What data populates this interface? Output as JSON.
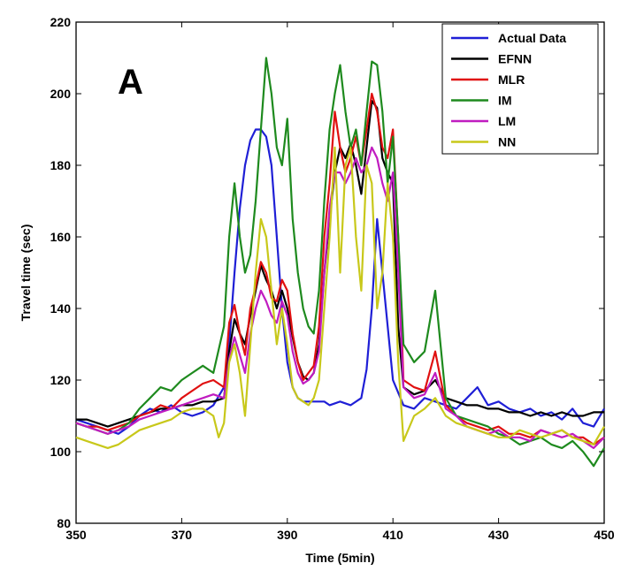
{
  "chart_data": {
    "type": "line",
    "panel_label": "A",
    "title": "",
    "xlabel": "Time (5min)",
    "ylabel": "Travel time (sec)",
    "xlim": [
      350,
      450
    ],
    "ylim": [
      80,
      220
    ],
    "xticks": [
      350,
      370,
      390,
      410,
      430,
      450
    ],
    "yticks": [
      80,
      100,
      120,
      140,
      160,
      180,
      200,
      220
    ],
    "grid": false,
    "legend_position": "top-right",
    "series": [
      {
        "name": "Actual Data",
        "color": "#1f1fd6",
        "x": [
          350,
          352,
          354,
          356,
          358,
          360,
          362,
          364,
          366,
          368,
          370,
          372,
          374,
          376,
          378,
          379,
          380,
          381,
          382,
          383,
          384,
          385,
          386,
          387,
          388,
          389,
          390,
          391,
          392,
          393,
          394,
          395,
          396,
          397,
          398,
          400,
          402,
          404,
          405,
          406,
          407,
          408,
          410,
          412,
          414,
          416,
          418,
          420,
          422,
          424,
          426,
          428,
          430,
          432,
          434,
          436,
          438,
          440,
          442,
          444,
          446,
          448,
          450
        ],
        "y": [
          109,
          108,
          107,
          106,
          105,
          107,
          110,
          112,
          111,
          113,
          111,
          110,
          111,
          113,
          118,
          130,
          150,
          168,
          180,
          187,
          190,
          190,
          188,
          180,
          160,
          140,
          125,
          118,
          115,
          114,
          114,
          114,
          114,
          114,
          113,
          114,
          113,
          115,
          123,
          140,
          165,
          150,
          120,
          113,
          112,
          115,
          114,
          113,
          112,
          115,
          118,
          113,
          114,
          112,
          111,
          112,
          110,
          111,
          109,
          112,
          108,
          107,
          112
        ]
      },
      {
        "name": "EFNN",
        "color": "#000000",
        "x": [
          350,
          352,
          354,
          356,
          358,
          360,
          362,
          364,
          366,
          368,
          370,
          372,
          374,
          376,
          378,
          379,
          380,
          381,
          382,
          383,
          384,
          385,
          386,
          387,
          388,
          389,
          390,
          391,
          392,
          393,
          394,
          395,
          396,
          397,
          398,
          399,
          400,
          401,
          402,
          403,
          404,
          405,
          406,
          407,
          408,
          409,
          410,
          411,
          412,
          414,
          416,
          418,
          420,
          422,
          424,
          426,
          428,
          430,
          432,
          434,
          436,
          438,
          440,
          442,
          444,
          446,
          448,
          450
        ],
        "y": [
          109,
          109,
          108,
          107,
          108,
          109,
          110,
          111,
          112,
          112,
          113,
          113,
          114,
          114,
          115,
          128,
          137,
          133,
          130,
          138,
          145,
          152,
          148,
          145,
          140,
          145,
          140,
          132,
          125,
          121,
          120,
          122,
          130,
          150,
          165,
          178,
          185,
          182,
          186,
          180,
          172,
          185,
          198,
          196,
          182,
          178,
          175,
          135,
          118,
          116,
          117,
          120,
          115,
          114,
          113,
          113,
          112,
          112,
          111,
          111,
          110,
          111,
          110,
          111,
          110,
          110,
          111,
          111
        ]
      },
      {
        "name": "MLR",
        "color": "#e01010",
        "x": [
          350,
          352,
          354,
          356,
          358,
          360,
          362,
          364,
          366,
          368,
          370,
          372,
          374,
          376,
          378,
          379,
          380,
          381,
          382,
          383,
          384,
          385,
          386,
          387,
          388,
          389,
          390,
          391,
          392,
          393,
          394,
          395,
          396,
          397,
          398,
          399,
          400,
          401,
          402,
          403,
          404,
          405,
          406,
          407,
          408,
          409,
          410,
          411,
          412,
          414,
          416,
          418,
          420,
          422,
          424,
          426,
          428,
          430,
          432,
          434,
          436,
          438,
          440,
          442,
          444,
          446,
          448,
          450
        ],
        "y": [
          108,
          107,
          107,
          106,
          107,
          108,
          110,
          111,
          113,
          112,
          115,
          117,
          119,
          120,
          118,
          136,
          141,
          133,
          127,
          140,
          146,
          153,
          150,
          143,
          142,
          148,
          145,
          133,
          125,
          120,
          122,
          124,
          135,
          160,
          175,
          195,
          185,
          178,
          182,
          188,
          180,
          190,
          200,
          195,
          185,
          182,
          190,
          160,
          120,
          118,
          117,
          128,
          113,
          110,
          108,
          107,
          106,
          107,
          105,
          105,
          104,
          106,
          105,
          106,
          104,
          104,
          102,
          104
        ]
      },
      {
        "name": "IM",
        "color": "#1e8a1e",
        "x": [
          350,
          352,
          354,
          356,
          358,
          360,
          362,
          364,
          366,
          368,
          370,
          372,
          374,
          376,
          378,
          379,
          380,
          381,
          382,
          383,
          384,
          385,
          386,
          387,
          388,
          389,
          390,
          391,
          392,
          393,
          394,
          395,
          396,
          397,
          398,
          399,
          400,
          401,
          402,
          403,
          404,
          405,
          406,
          407,
          408,
          409,
          410,
          411,
          412,
          414,
          416,
          418,
          420,
          422,
          424,
          426,
          428,
          430,
          432,
          434,
          436,
          438,
          440,
          442,
          444,
          446,
          448,
          450
        ],
        "y": [
          108,
          107,
          106,
          105,
          106,
          108,
          112,
          115,
          118,
          117,
          120,
          122,
          124,
          122,
          135,
          160,
          175,
          160,
          150,
          155,
          170,
          190,
          210,
          200,
          185,
          180,
          193,
          165,
          150,
          140,
          135,
          133,
          145,
          170,
          190,
          200,
          208,
          195,
          185,
          190,
          180,
          195,
          209,
          208,
          195,
          175,
          188,
          160,
          130,
          125,
          128,
          145,
          115,
          110,
          109,
          108,
          107,
          105,
          104,
          102,
          103,
          104,
          102,
          101,
          103,
          100,
          96,
          101
        ]
      },
      {
        "name": "LM",
        "color": "#c01cc0",
        "x": [
          350,
          352,
          354,
          356,
          358,
          360,
          362,
          364,
          366,
          368,
          370,
          372,
          374,
          376,
          378,
          379,
          380,
          381,
          382,
          383,
          384,
          385,
          386,
          387,
          388,
          389,
          390,
          391,
          392,
          393,
          394,
          395,
          396,
          397,
          398,
          399,
          400,
          401,
          402,
          403,
          404,
          405,
          406,
          407,
          408,
          409,
          410,
          411,
          412,
          414,
          416,
          418,
          420,
          422,
          424,
          426,
          428,
          430,
          432,
          434,
          436,
          438,
          440,
          442,
          444,
          446,
          448,
          450
        ],
        "y": [
          108,
          107,
          106,
          105,
          106,
          107,
          109,
          110,
          111,
          112,
          113,
          114,
          115,
          116,
          115,
          126,
          132,
          127,
          122,
          133,
          140,
          145,
          142,
          138,
          136,
          142,
          138,
          128,
          122,
          119,
          120,
          122,
          128,
          150,
          168,
          178,
          178,
          175,
          178,
          182,
          178,
          180,
          185,
          182,
          175,
          170,
          178,
          150,
          118,
          115,
          116,
          122,
          112,
          110,
          107,
          106,
          105,
          106,
          104,
          104,
          103,
          106,
          105,
          104,
          105,
          103,
          101,
          104
        ]
      },
      {
        "name": "NN",
        "color": "#c8c81a",
        "x": [
          350,
          352,
          354,
          356,
          358,
          360,
          362,
          364,
          366,
          368,
          370,
          372,
          374,
          376,
          377,
          378,
          379,
          380,
          381,
          382,
          383,
          384,
          385,
          386,
          387,
          388,
          389,
          390,
          391,
          392,
          393,
          394,
          395,
          396,
          397,
          398,
          399,
          400,
          401,
          402,
          403,
          404,
          405,
          406,
          407,
          408,
          409,
          410,
          411,
          412,
          414,
          416,
          418,
          420,
          422,
          424,
          426,
          428,
          430,
          432,
          434,
          436,
          438,
          440,
          442,
          444,
          446,
          448,
          450
        ],
        "y": [
          104,
          103,
          102,
          101,
          102,
          104,
          106,
          107,
          108,
          109,
          111,
          112,
          112,
          110,
          104,
          108,
          125,
          130,
          122,
          110,
          130,
          150,
          165,
          160,
          145,
          130,
          140,
          130,
          118,
          115,
          114,
          113,
          115,
          120,
          140,
          160,
          185,
          150,
          180,
          185,
          160,
          145,
          180,
          175,
          140,
          150,
          175,
          160,
          125,
          103,
          110,
          112,
          115,
          110,
          108,
          107,
          106,
          105,
          104,
          104,
          106,
          105,
          104,
          105,
          106,
          104,
          103,
          102,
          107
        ]
      }
    ]
  }
}
